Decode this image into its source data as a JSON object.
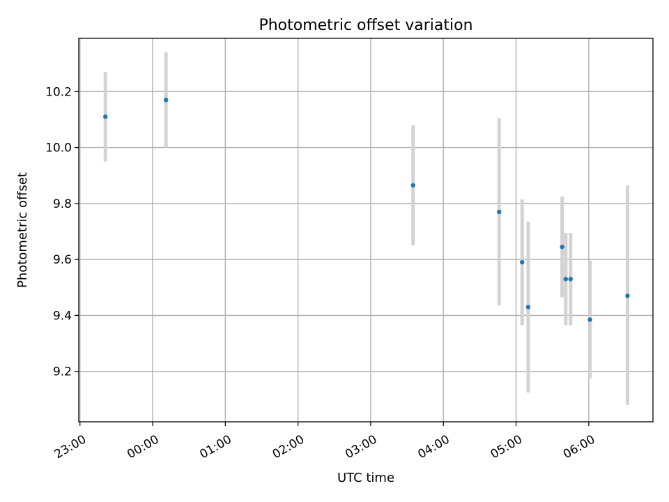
{
  "chart_data": {
    "type": "scatter",
    "title": "Photometric offset variation",
    "xlabel": "UTC time",
    "ylabel": "Photometric offset",
    "x_axis_type": "time",
    "xlim": [
      "22:59",
      "06:53"
    ],
    "ylim": [
      9.02,
      10.39
    ],
    "xticks": [
      "23:00",
      "00:00",
      "01:00",
      "02:00",
      "03:00",
      "04:00",
      "05:00",
      "06:00"
    ],
    "yticks": [
      9.2,
      9.4,
      9.6,
      9.8,
      10.0,
      10.2
    ],
    "grid": true,
    "legend": false,
    "colors": {
      "point": "#1f77b4",
      "errorbar": "#d3d3d3",
      "grid": "#b0b0b0"
    },
    "series": [
      {
        "points": [
          {
            "x": "23:21",
            "y": 10.11,
            "ylow": 9.95,
            "yhigh": 10.27
          },
          {
            "x": "00:11",
            "y": 10.17,
            "ylow": 10.0,
            "yhigh": 10.34
          },
          {
            "x": "03:35",
            "y": 9.865,
            "ylow": 9.65,
            "yhigh": 10.08
          },
          {
            "x": "04:46",
            "y": 9.77,
            "ylow": 9.435,
            "yhigh": 10.105
          },
          {
            "x": "05:05",
            "y": 9.59,
            "ylow": 9.365,
            "yhigh": 9.815
          },
          {
            "x": "05:10",
            "y": 9.43,
            "ylow": 9.125,
            "yhigh": 9.735
          },
          {
            "x": "05:38",
            "y": 9.645,
            "ylow": 9.465,
            "yhigh": 9.825
          },
          {
            "x": "05:41",
            "y": 9.53,
            "ylow": 9.365,
            "yhigh": 9.695
          },
          {
            "x": "05:45",
            "y": 9.53,
            "ylow": 9.365,
            "yhigh": 9.695
          },
          {
            "x": "06:01",
            "y": 9.385,
            "ylow": 9.175,
            "yhigh": 9.595
          },
          {
            "x": "06:32",
            "y": 9.47,
            "ylow": 9.08,
            "yhigh": 9.865
          }
        ]
      }
    ]
  }
}
